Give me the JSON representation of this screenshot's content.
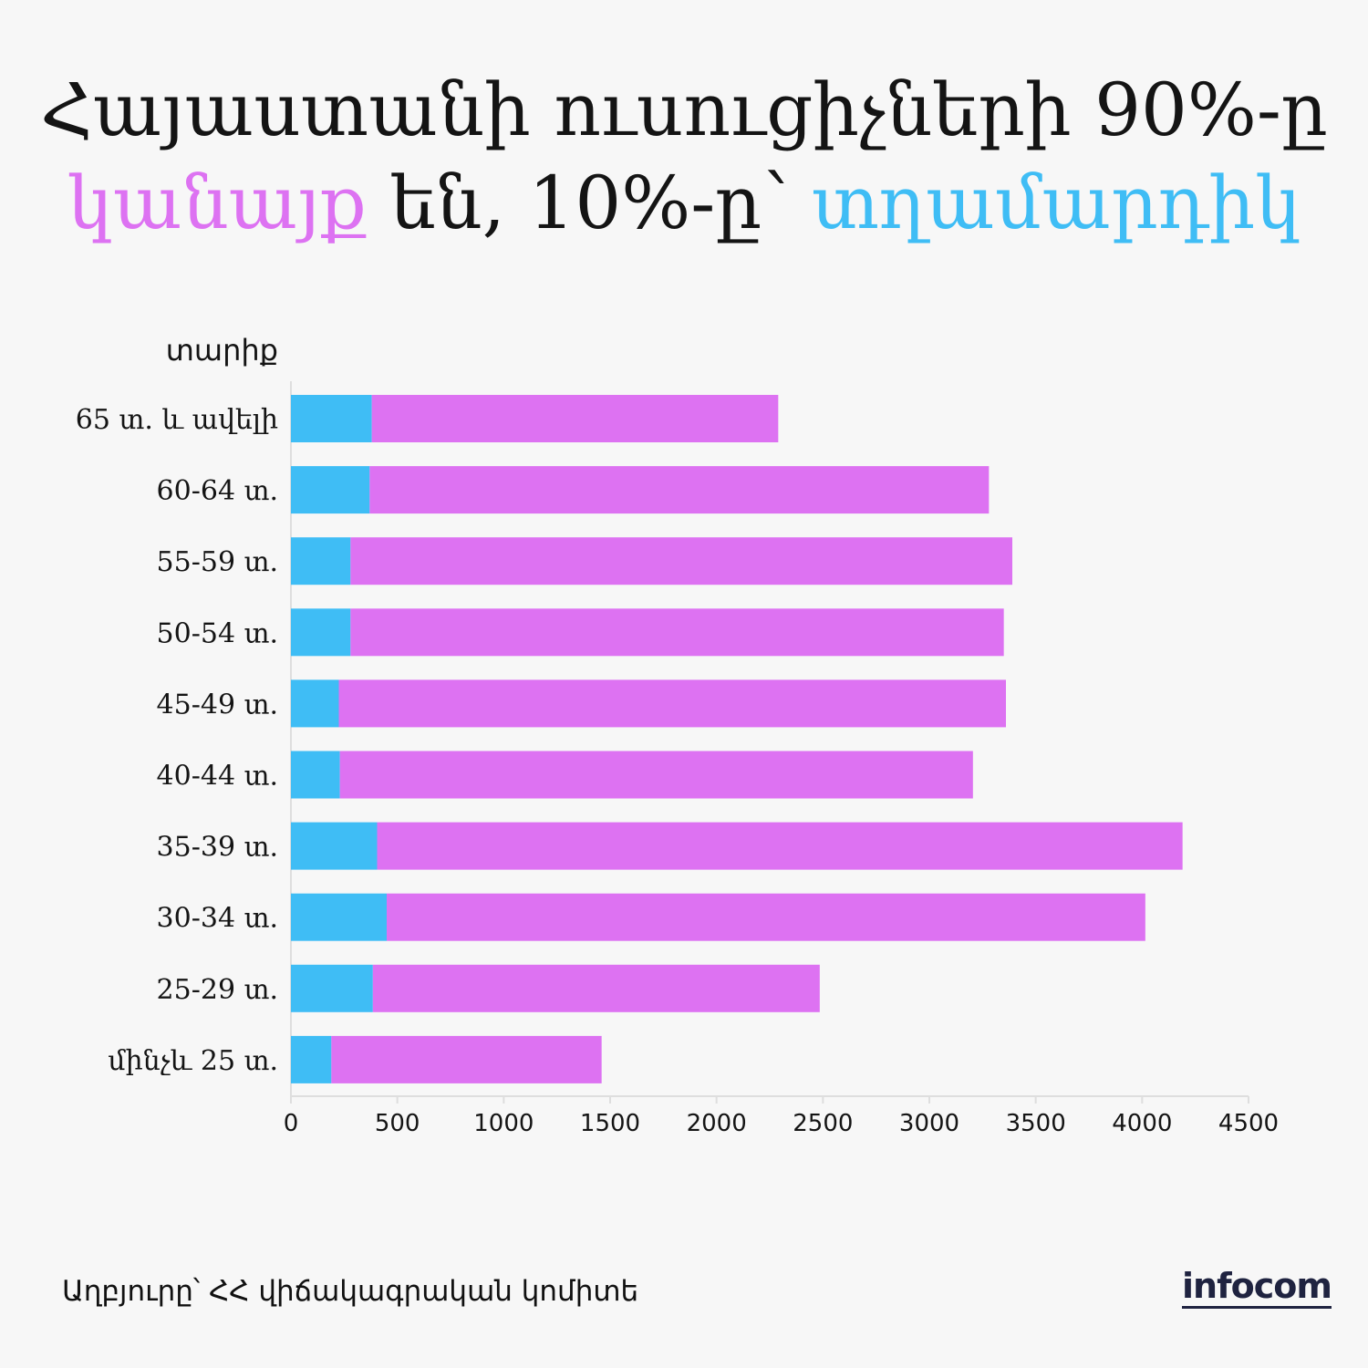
{
  "title": {
    "line1": "Հայաստանի ուսուցիչների 90%-ը",
    "line2_women": "կանայք",
    "line2_mid": " են, 10%-ը՝ ",
    "line2_men": "տղամարդիկ"
  },
  "colors": {
    "women": "#dd72f2",
    "men": "#3fbdf5",
    "text": "#141414",
    "axis": "#dedede"
  },
  "chart_data": {
    "type": "bar",
    "orientation": "horizontal",
    "stacked": true,
    "ylabel": "տարիք",
    "categories": [
      "65 տ. և ավելի",
      "60-64 տ.",
      "55-59 տ.",
      "50-54 տ.",
      "45-49 տ.",
      "40-44 տ.",
      "35-39 տ.",
      "30-34 տ.",
      "25-29 տ.",
      "մինչև 25 տ."
    ],
    "series": [
      {
        "color": "#3fbdf5",
        "values": [
          380,
          370,
          280,
          280,
          225,
          230,
          405,
          450,
          385,
          190
        ]
      },
      {
        "color": "#dd72f2",
        "values": [
          1910,
          2910,
          3110,
          3070,
          3135,
          2975,
          3785,
          3565,
          2100,
          1270
        ]
      }
    ],
    "xticks": [
      0,
      500,
      1000,
      1500,
      2000,
      2500,
      3000,
      3500,
      4000,
      4500
    ],
    "xlim": [
      0,
      4500
    ],
    "legend": "none (title colors identify series)"
  },
  "footer": {
    "source": "Աղբյուրը՝ ՀՀ վիճակագրական կոմիտե",
    "logo": "infocom"
  }
}
